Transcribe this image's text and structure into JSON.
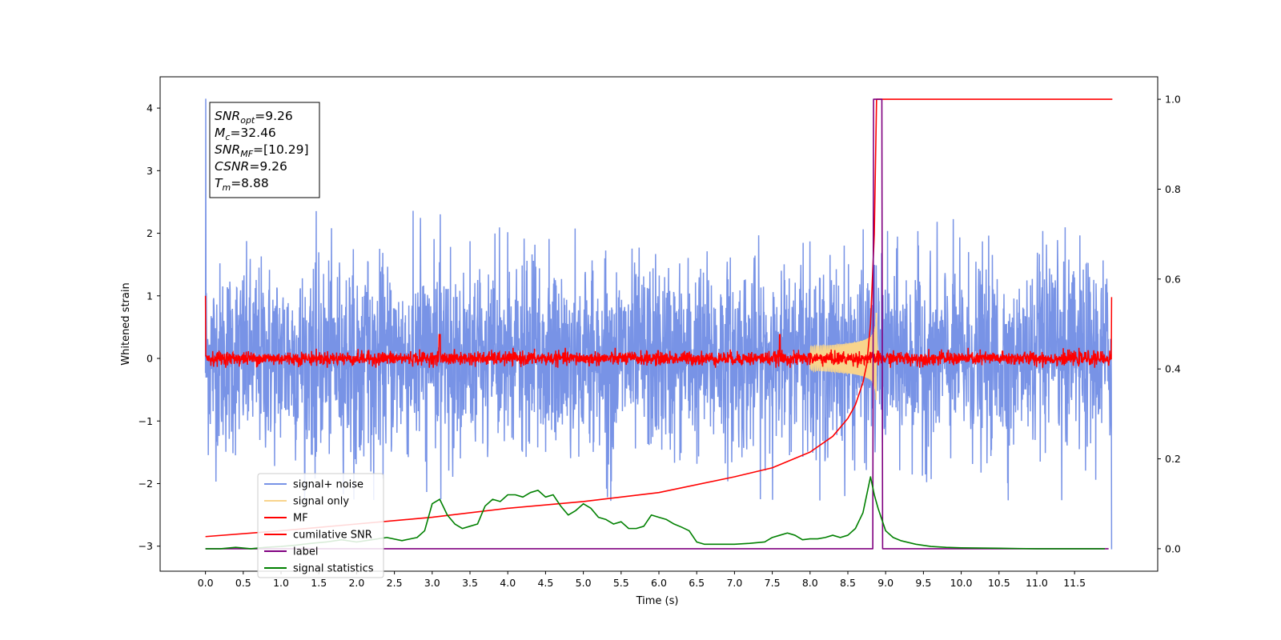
{
  "chart_data": {
    "type": "line",
    "xlabel": "Time (s)",
    "ylabel": "Whitened strain",
    "xlim": [
      -0.6,
      12.6
    ],
    "ylim": [
      -3.4,
      4.5
    ],
    "y2lim": [
      -0.05,
      1.05
    ],
    "x_ticks": [
      "0.0",
      "0.5",
      "1.0",
      "1.5",
      "2.0",
      "2.5",
      "3.0",
      "3.5",
      "4.0",
      "4.5",
      "5.0",
      "5.5",
      "6.0",
      "6.5",
      "7.0",
      "7.5",
      "8.0",
      "8.5",
      "9.0",
      "9.5",
      "10.0",
      "10.5",
      "11.0",
      "11.5"
    ],
    "y_ticks": [
      "−3",
      "−2",
      "−1",
      "0",
      "1",
      "2",
      "3",
      "4"
    ],
    "y2_ticks": [
      "0.0",
      "0.2",
      "0.4",
      "0.6",
      "0.8",
      "1.0"
    ],
    "info_box": [
      {
        "sym": "SNR",
        "sub": "opt",
        "val": "=9.26"
      },
      {
        "sym": "M",
        "sub": "c",
        "val": "=32.46"
      },
      {
        "sym": "SNR",
        "sub": "MF",
        "val": "=[10.29]"
      },
      {
        "sym": "CSNR",
        "sub": "",
        "val": "=9.26"
      },
      {
        "sym": "T",
        "sub": "m",
        "val": "=8.88"
      }
    ],
    "legend_position": "lower-left",
    "series": [
      {
        "name": "signal+ noise",
        "color": "#7893e6",
        "axis": "left",
        "description_range": [
          -2.4,
          2.4
        ]
      },
      {
        "name": "signal only",
        "color": "#f8d48c",
        "axis": "left",
        "peak_time": 8.88
      },
      {
        "name": "MF",
        "color": "#ff0000",
        "axis": "left",
        "description_range": [
          -0.15,
          0.4
        ]
      },
      {
        "name": "cumilative SNR",
        "color": "#ff0000",
        "axis": "right",
        "x": [
          0.0,
          1.0,
          2.0,
          3.0,
          4.0,
          5.0,
          6.0,
          7.0,
          7.5,
          8.0,
          8.3,
          8.5,
          8.6,
          8.7,
          8.75,
          8.8,
          8.85,
          8.88,
          12.0
        ],
        "values": [
          0.027,
          0.04,
          0.055,
          0.07,
          0.09,
          0.105,
          0.125,
          0.16,
          0.18,
          0.215,
          0.25,
          0.29,
          0.32,
          0.37,
          0.41,
          0.5,
          0.7,
          1.0,
          1.0
        ]
      },
      {
        "name": "label",
        "color": "#800080",
        "axis": "right",
        "x": [
          0.0,
          8.83,
          8.84,
          8.95,
          8.96,
          11.95
        ],
        "values": [
          0.0,
          0.0,
          1.0,
          1.0,
          0.0,
          0.0
        ]
      },
      {
        "name": "signal statistics",
        "color": "#008000",
        "axis": "right",
        "x": [
          0.0,
          0.2,
          0.4,
          0.6,
          0.8,
          1.0,
          1.2,
          1.4,
          1.6,
          1.8,
          2.0,
          2.2,
          2.4,
          2.6,
          2.8,
          2.9,
          3.0,
          3.1,
          3.2,
          3.3,
          3.4,
          3.5,
          3.6,
          3.7,
          3.8,
          3.9,
          4.0,
          4.1,
          4.2,
          4.3,
          4.4,
          4.5,
          4.6,
          4.7,
          4.8,
          4.9,
          5.0,
          5.1,
          5.2,
          5.3,
          5.4,
          5.5,
          5.6,
          5.7,
          5.8,
          5.9,
          6.0,
          6.1,
          6.2,
          6.3,
          6.4,
          6.5,
          6.6,
          6.8,
          7.0,
          7.2,
          7.4,
          7.5,
          7.6,
          7.7,
          7.8,
          7.9,
          8.0,
          8.1,
          8.2,
          8.3,
          8.4,
          8.5,
          8.6,
          8.7,
          8.8,
          8.85,
          8.9,
          9.0,
          9.1,
          9.2,
          9.4,
          9.6,
          9.8,
          10.0,
          10.5,
          11.0,
          11.5,
          11.9
        ],
        "values": [
          0.0,
          0.0,
          0.003,
          0.0,
          0.003,
          0.005,
          0.008,
          0.012,
          0.015,
          0.02,
          0.015,
          0.02,
          0.025,
          0.018,
          0.025,
          0.04,
          0.1,
          0.11,
          0.075,
          0.055,
          0.045,
          0.05,
          0.055,
          0.095,
          0.11,
          0.105,
          0.12,
          0.12,
          0.115,
          0.125,
          0.13,
          0.115,
          0.12,
          0.095,
          0.075,
          0.085,
          0.1,
          0.09,
          0.07,
          0.065,
          0.055,
          0.06,
          0.045,
          0.045,
          0.05,
          0.075,
          0.07,
          0.065,
          0.055,
          0.048,
          0.04,
          0.015,
          0.01,
          0.01,
          0.01,
          0.012,
          0.015,
          0.025,
          0.03,
          0.035,
          0.03,
          0.02,
          0.022,
          0.022,
          0.025,
          0.03,
          0.025,
          0.03,
          0.045,
          0.08,
          0.16,
          0.12,
          0.09,
          0.04,
          0.025,
          0.018,
          0.01,
          0.005,
          0.003,
          0.002,
          0.001,
          0.0,
          0.0,
          0.0
        ]
      }
    ]
  }
}
